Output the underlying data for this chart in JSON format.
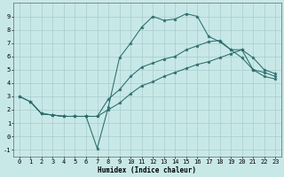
{
  "xlabel": "Humidex (Indice chaleur)",
  "background_color": "#c8e8e8",
  "grid_color": "#a8cccc",
  "line_color": "#2a6b6b",
  "xlim": [
    -0.5,
    23.5
  ],
  "ylim": [
    -1.5,
    10.0
  ],
  "xticks": [
    0,
    1,
    2,
    3,
    4,
    5,
    6,
    7,
    8,
    9,
    10,
    11,
    12,
    13,
    14,
    15,
    16,
    17,
    18,
    19,
    20,
    21,
    22,
    23
  ],
  "yticks": [
    -1,
    0,
    1,
    2,
    3,
    4,
    5,
    6,
    7,
    8,
    9
  ],
  "line1_x": [
    1,
    2,
    3,
    4,
    5,
    6,
    7,
    8,
    9,
    10,
    11,
    12,
    13,
    14,
    15,
    16,
    17,
    18,
    19,
    20,
    21,
    22,
    23
  ],
  "line1_y": [
    2.6,
    1.7,
    1.6,
    1.5,
    1.5,
    1.5,
    -0.9,
    2.2,
    5.9,
    7.0,
    8.2,
    9.0,
    8.7,
    8.8,
    9.2,
    9.0,
    7.5,
    7.1,
    6.5,
    5.9,
    5.0,
    4.8,
    4.5
  ],
  "line2_x": [
    0,
    1,
    2,
    3,
    4,
    5,
    6,
    7,
    8,
    9,
    10,
    11,
    12,
    13,
    14,
    15,
    16,
    17,
    18,
    19,
    20,
    21,
    22,
    23
  ],
  "line2_y": [
    3.0,
    2.6,
    1.7,
    1.6,
    1.5,
    1.5,
    1.5,
    1.5,
    2.8,
    3.5,
    4.5,
    5.2,
    5.5,
    5.8,
    6.0,
    6.5,
    6.8,
    7.1,
    7.2,
    6.5,
    6.5,
    5.9,
    5.0,
    4.7
  ],
  "line3_x": [
    0,
    1,
    2,
    3,
    4,
    5,
    6,
    7,
    8,
    9,
    10,
    11,
    12,
    13,
    14,
    15,
    16,
    17,
    18,
    19,
    20,
    21,
    22,
    23
  ],
  "line3_y": [
    3.0,
    2.6,
    1.7,
    1.6,
    1.5,
    1.5,
    1.5,
    1.5,
    2.0,
    2.5,
    3.2,
    3.8,
    4.1,
    4.5,
    4.8,
    5.1,
    5.4,
    5.6,
    5.9,
    6.2,
    6.5,
    5.0,
    4.5,
    4.3
  ],
  "tick_fontsize": 5.0,
  "xlabel_fontsize": 5.5
}
